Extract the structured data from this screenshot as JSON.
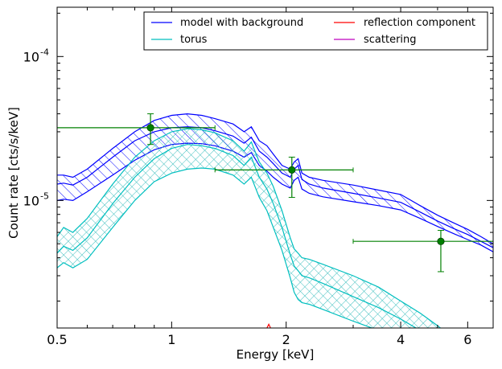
{
  "chart_data": {
    "type": "line",
    "title": "",
    "xlabel": "Energy [keV]",
    "ylabel": "Count rate [cts/s/keV]",
    "x_scale": "log",
    "y_scale": "log",
    "xlim": [
      0.5,
      7.0
    ],
    "ylim": [
      1.3e-06,
      0.00022
    ],
    "x_ticks": [
      {
        "value": 0.5,
        "label": "0.5"
      },
      {
        "value": 1,
        "label": "1"
      },
      {
        "value": 2,
        "label": "2"
      },
      {
        "value": 4,
        "label": "4"
      },
      {
        "value": 6,
        "label": "6"
      }
    ],
    "y_ticks": [
      {
        "value": 0.0001,
        "base": "10",
        "exp": "-4"
      },
      {
        "value": 1e-05,
        "base": "10",
        "exp": "-5"
      }
    ],
    "legend": {
      "placement": "top-right",
      "entries": [
        {
          "label": "model with background",
          "color": "#0000ff"
        },
        {
          "label": "torus",
          "color": "#00bfbf"
        },
        {
          "label": "reflection component",
          "color": "#ff0000"
        },
        {
          "label": "scattering",
          "color": "#bf00bf"
        }
      ]
    },
    "series": [
      {
        "name": "model with background",
        "color": "#0000ff",
        "hatch": "diagonal",
        "x": [
          0.5,
          0.52,
          0.55,
          0.6,
          0.7,
          0.8,
          0.9,
          1.0,
          1.1,
          1.2,
          1.3,
          1.45,
          1.55,
          1.62,
          1.7,
          1.78,
          1.85,
          1.95,
          2.05,
          2.1,
          2.15,
          2.2,
          2.3,
          2.5,
          3.0,
          3.5,
          4.0,
          4.5,
          5.0,
          5.5,
          6.0,
          6.5,
          7.0
        ],
        "upper": [
          1.5e-05,
          1.5e-05,
          1.45e-05,
          1.65e-05,
          2.3e-05,
          3e-05,
          3.6e-05,
          3.9e-05,
          4e-05,
          3.9e-05,
          3.7e-05,
          3.4e-05,
          3e-05,
          3.25e-05,
          2.6e-05,
          2.4e-05,
          2.1e-05,
          1.75e-05,
          1.65e-05,
          1.85e-05,
          1.95e-05,
          1.55e-05,
          1.45e-05,
          1.38e-05,
          1.28e-05,
          1.18e-05,
          1.1e-05,
          9.2e-06,
          7.9e-06,
          7e-06,
          6.3e-06,
          5.6e-06,
          5e-06
        ],
        "mid": [
          1.3e-05,
          1.32e-05,
          1.28e-05,
          1.45e-05,
          2e-05,
          2.6e-05,
          3e-05,
          3.2e-05,
          3.25e-05,
          3.2e-05,
          3.05e-05,
          2.8e-05,
          2.5e-05,
          2.75e-05,
          2.2e-05,
          2e-05,
          1.8e-05,
          1.55e-05,
          1.45e-05,
          1.65e-05,
          1.75e-05,
          1.4e-05,
          1.3e-05,
          1.22e-05,
          1.12e-05,
          1.04e-05,
          9.7e-06,
          8.3e-06,
          7.2e-06,
          6.4e-06,
          5.8e-06,
          5.2e-06,
          4.7e-06
        ],
        "lower": [
          1e-05,
          1.02e-05,
          1e-05,
          1.15e-05,
          1.5e-05,
          1.9e-05,
          2.25e-05,
          2.45e-05,
          2.5e-05,
          2.48e-05,
          2.4e-05,
          2.2e-05,
          2e-05,
          2.15e-05,
          1.75e-05,
          1.6e-05,
          1.45e-05,
          1.3e-05,
          1.22e-05,
          1.38e-05,
          1.45e-05,
          1.2e-05,
          1.12e-05,
          1.06e-05,
          9.8e-06,
          9.2e-06,
          8.6e-06,
          7.5e-06,
          6.6e-06,
          5.9e-06,
          5.35e-06,
          4.9e-06,
          4.4e-06
        ]
      },
      {
        "name": "torus",
        "color": "#00bfbf",
        "hatch": "crosshatch",
        "x": [
          0.5,
          0.52,
          0.55,
          0.6,
          0.7,
          0.8,
          0.9,
          1.0,
          1.1,
          1.2,
          1.3,
          1.45,
          1.55,
          1.62,
          1.7,
          1.78,
          1.85,
          1.95,
          2.05,
          2.1,
          2.15,
          2.2,
          2.3,
          2.5,
          3.0,
          3.5,
          4.0,
          4.5,
          5.0,
          5.5,
          6.0,
          6.5,
          7.0
        ],
        "upper": [
          5.6e-06,
          6.5e-06,
          6e-06,
          7.5e-06,
          1.3e-05,
          2e-05,
          2.6e-05,
          3e-05,
          3.15e-05,
          3.1e-05,
          2.95e-05,
          2.6e-05,
          2.2e-05,
          2.55e-05,
          1.85e-05,
          1.55e-05,
          1.25e-05,
          8.5e-06,
          5.5e-06,
          4.6e-06,
          4.3e-06,
          4e-06,
          3.9e-06,
          3.6e-06,
          3e-06,
          2.5e-06,
          2e-06,
          1.65e-06,
          1.35e-06,
          1.1e-06,
          1e-06,
          1e-06,
          1e-06
        ],
        "mid": [
          4.3e-06,
          4.8e-06,
          4.5e-06,
          5.5e-06,
          9.5e-06,
          1.45e-05,
          1.95e-05,
          2.3e-05,
          2.45e-05,
          2.4e-05,
          2.3e-05,
          2.05e-05,
          1.75e-05,
          2e-05,
          1.45e-05,
          1.2e-05,
          9.5e-06,
          6.5e-06,
          4.2e-06,
          3.5e-06,
          3.25e-06,
          3e-06,
          2.9e-06,
          2.65e-06,
          2.15e-06,
          1.8e-06,
          1.5e-06,
          1.25e-06,
          1.05e-06,
          1e-06,
          1e-06,
          1e-06,
          1e-06
        ],
        "lower": [
          3.4e-06,
          3.7e-06,
          3.4e-06,
          3.9e-06,
          6.5e-06,
          1e-05,
          1.35e-05,
          1.55e-05,
          1.65e-05,
          1.68e-05,
          1.65e-05,
          1.5e-05,
          1.3e-05,
          1.45e-05,
          1.05e-05,
          8.5e-06,
          6.5e-06,
          4.5e-06,
          2.9e-06,
          2.3e-06,
          2.05e-06,
          1.95e-06,
          1.9e-06,
          1.75e-06,
          1.45e-06,
          1.25e-06,
          1.05e-06,
          1e-06,
          1e-06,
          1e-06,
          1e-06,
          1e-06,
          1e-06
        ]
      },
      {
        "name": "reflection component",
        "color": "#ff0000",
        "x": [
          1.75,
          1.78,
          1.8,
          1.82,
          1.85
        ],
        "y": [
          1.2e-06,
          1.3e-06,
          1.38e-06,
          1.3e-06,
          1.2e-06
        ]
      },
      {
        "name": "scattering",
        "color": "#bf00bf",
        "x": [],
        "y": []
      }
    ],
    "data_points": {
      "color": "#008000",
      "points": [
        {
          "x": 0.88,
          "y": 3.2e-05,
          "xerr": [
            0.5,
            1.3
          ],
          "yerr": [
            2.45e-05,
            4e-05
          ]
        },
        {
          "x": 2.07,
          "y": 1.63e-05,
          "xerr": [
            1.3,
            3.0
          ],
          "yerr": [
            1.05e-05,
            2e-05
          ]
        },
        {
          "x": 5.1,
          "y": 5.2e-06,
          "xerr": [
            3.0,
            7.0
          ],
          "yerr": [
            3.2e-06,
            6.2e-06
          ]
        }
      ]
    }
  }
}
